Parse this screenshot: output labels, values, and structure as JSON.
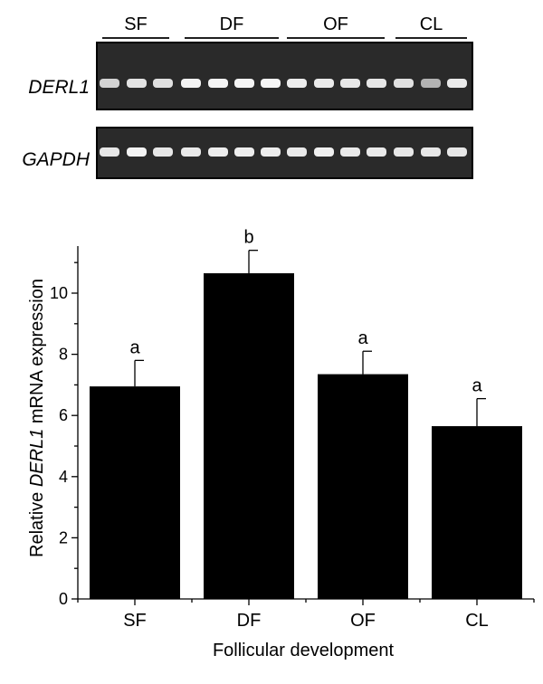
{
  "gel": {
    "groups": [
      "SF",
      "DF",
      "OF",
      "CL"
    ],
    "lanes_per_group": [
      3,
      4,
      4,
      3
    ],
    "panels": [
      {
        "name": "DERL1",
        "intensity": [
          0.7,
          0.82,
          0.8,
          0.95,
          0.95,
          0.95,
          0.97,
          0.9,
          0.88,
          0.85,
          0.85,
          0.8,
          0.45,
          0.88
        ]
      },
      {
        "name": "GAPDH",
        "intensity": [
          0.85,
          0.95,
          0.85,
          0.88,
          0.9,
          0.9,
          0.9,
          0.88,
          0.92,
          0.88,
          0.88,
          0.85,
          0.85,
          0.85
        ]
      }
    ]
  },
  "chart_data": {
    "type": "bar",
    "categories": [
      "SF",
      "DF",
      "OF",
      "CL"
    ],
    "values": [
      6.95,
      10.65,
      7.35,
      5.65
    ],
    "errors": [
      0.85,
      0.75,
      0.75,
      0.9
    ],
    "significance": [
      "a",
      "b",
      "a",
      "a"
    ],
    "xlabel": "Follicular development",
    "ylabel_prefix": "Relative ",
    "ylabel_gene": "DERL1",
    "ylabel_suffix": " mRNA expression",
    "ylim": [
      0,
      11.5
    ],
    "yticks": [
      0,
      2,
      4,
      6,
      8,
      10
    ],
    "grid": false,
    "bar_color": "#000000"
  }
}
